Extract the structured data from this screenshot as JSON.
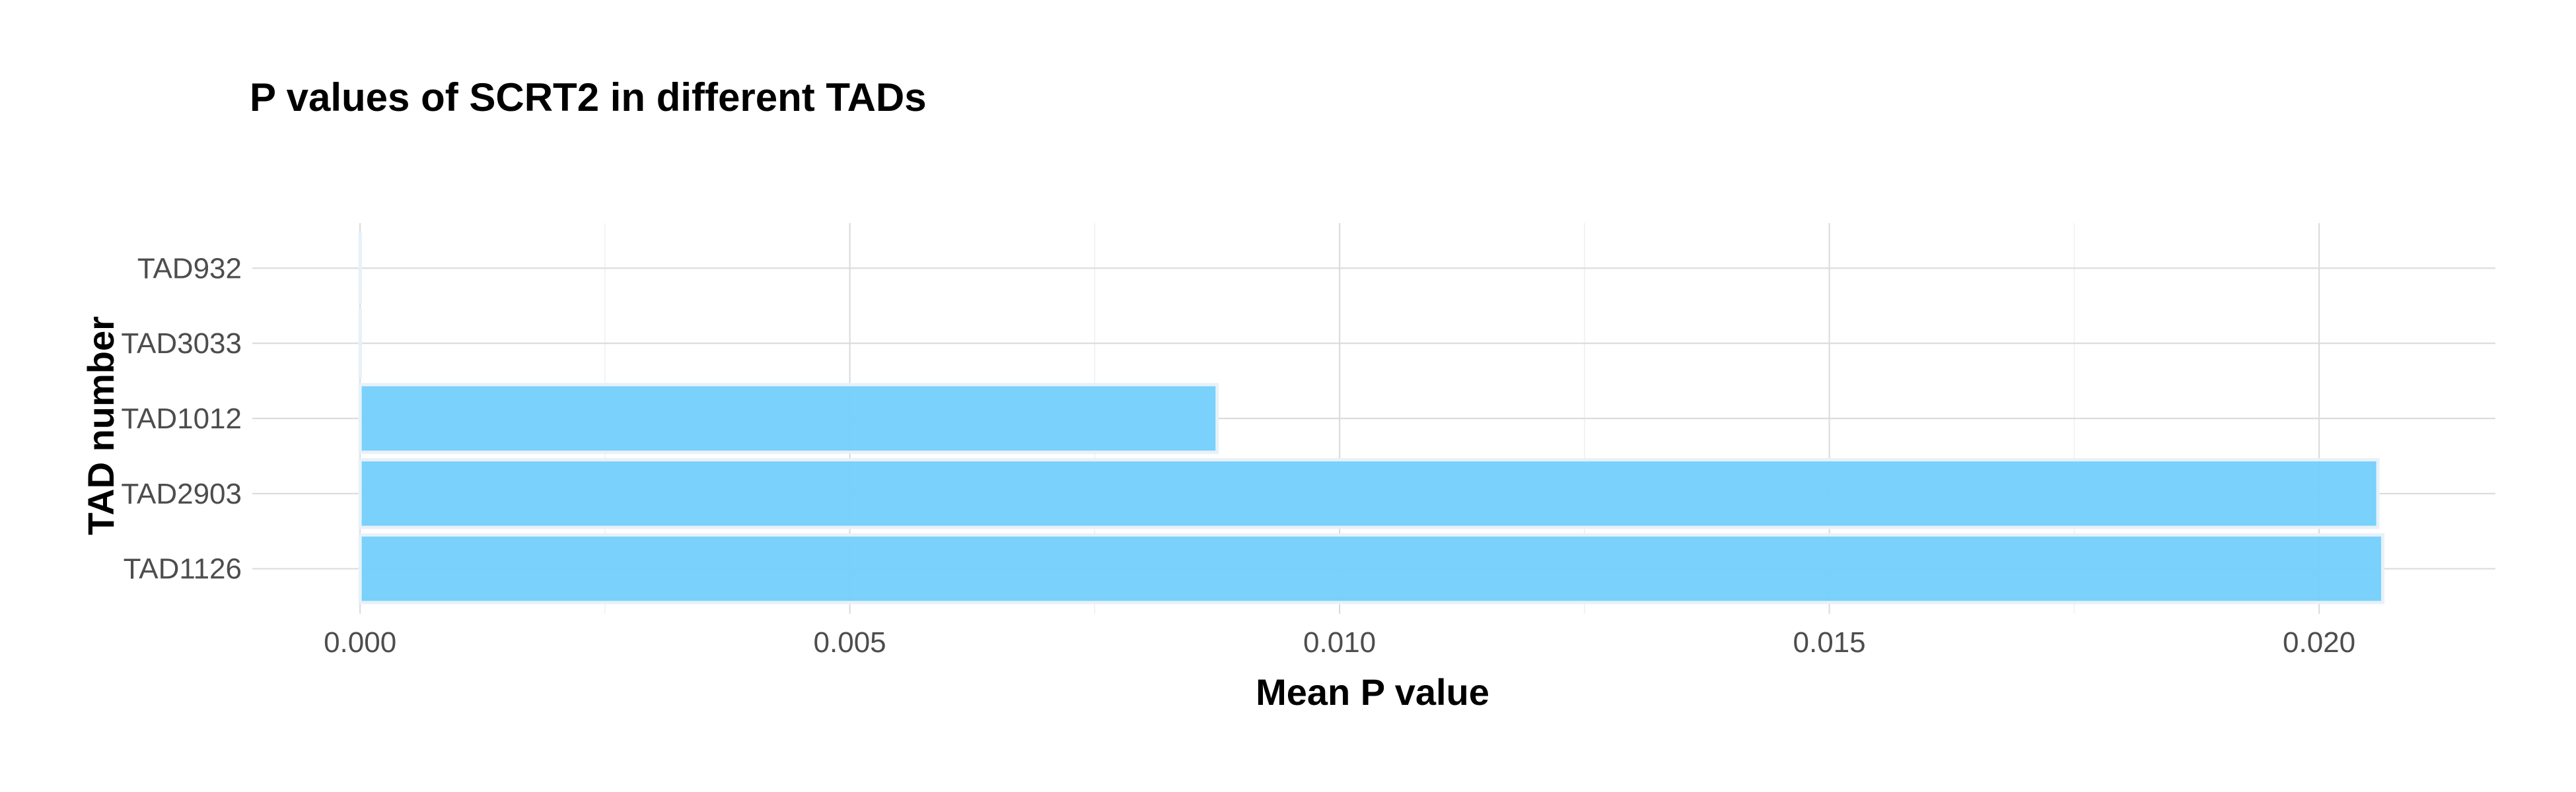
{
  "chart_data": {
    "type": "bar",
    "orientation": "horizontal",
    "title": "P values of SCRT2 in different TADs",
    "xlabel": "Mean P value",
    "ylabel": "TAD number",
    "categories": [
      "TAD932",
      "TAD3033",
      "TAD1012",
      "TAD2903",
      "TAD1126"
    ],
    "values": [
      0.0,
      0.0,
      0.00875,
      0.0206,
      0.02065
    ],
    "xlim": [
      -0.0011,
      0.0218
    ],
    "x_ticks": [
      0.0,
      0.005,
      0.01,
      0.015,
      0.02
    ],
    "x_tick_labels": [
      "0.000",
      "0.005",
      "0.010",
      "0.015",
      "0.020"
    ],
    "grid": true,
    "legend": "none",
    "bar_color": "#75d0fc",
    "bar_edge_color": "#e8f1f8"
  }
}
